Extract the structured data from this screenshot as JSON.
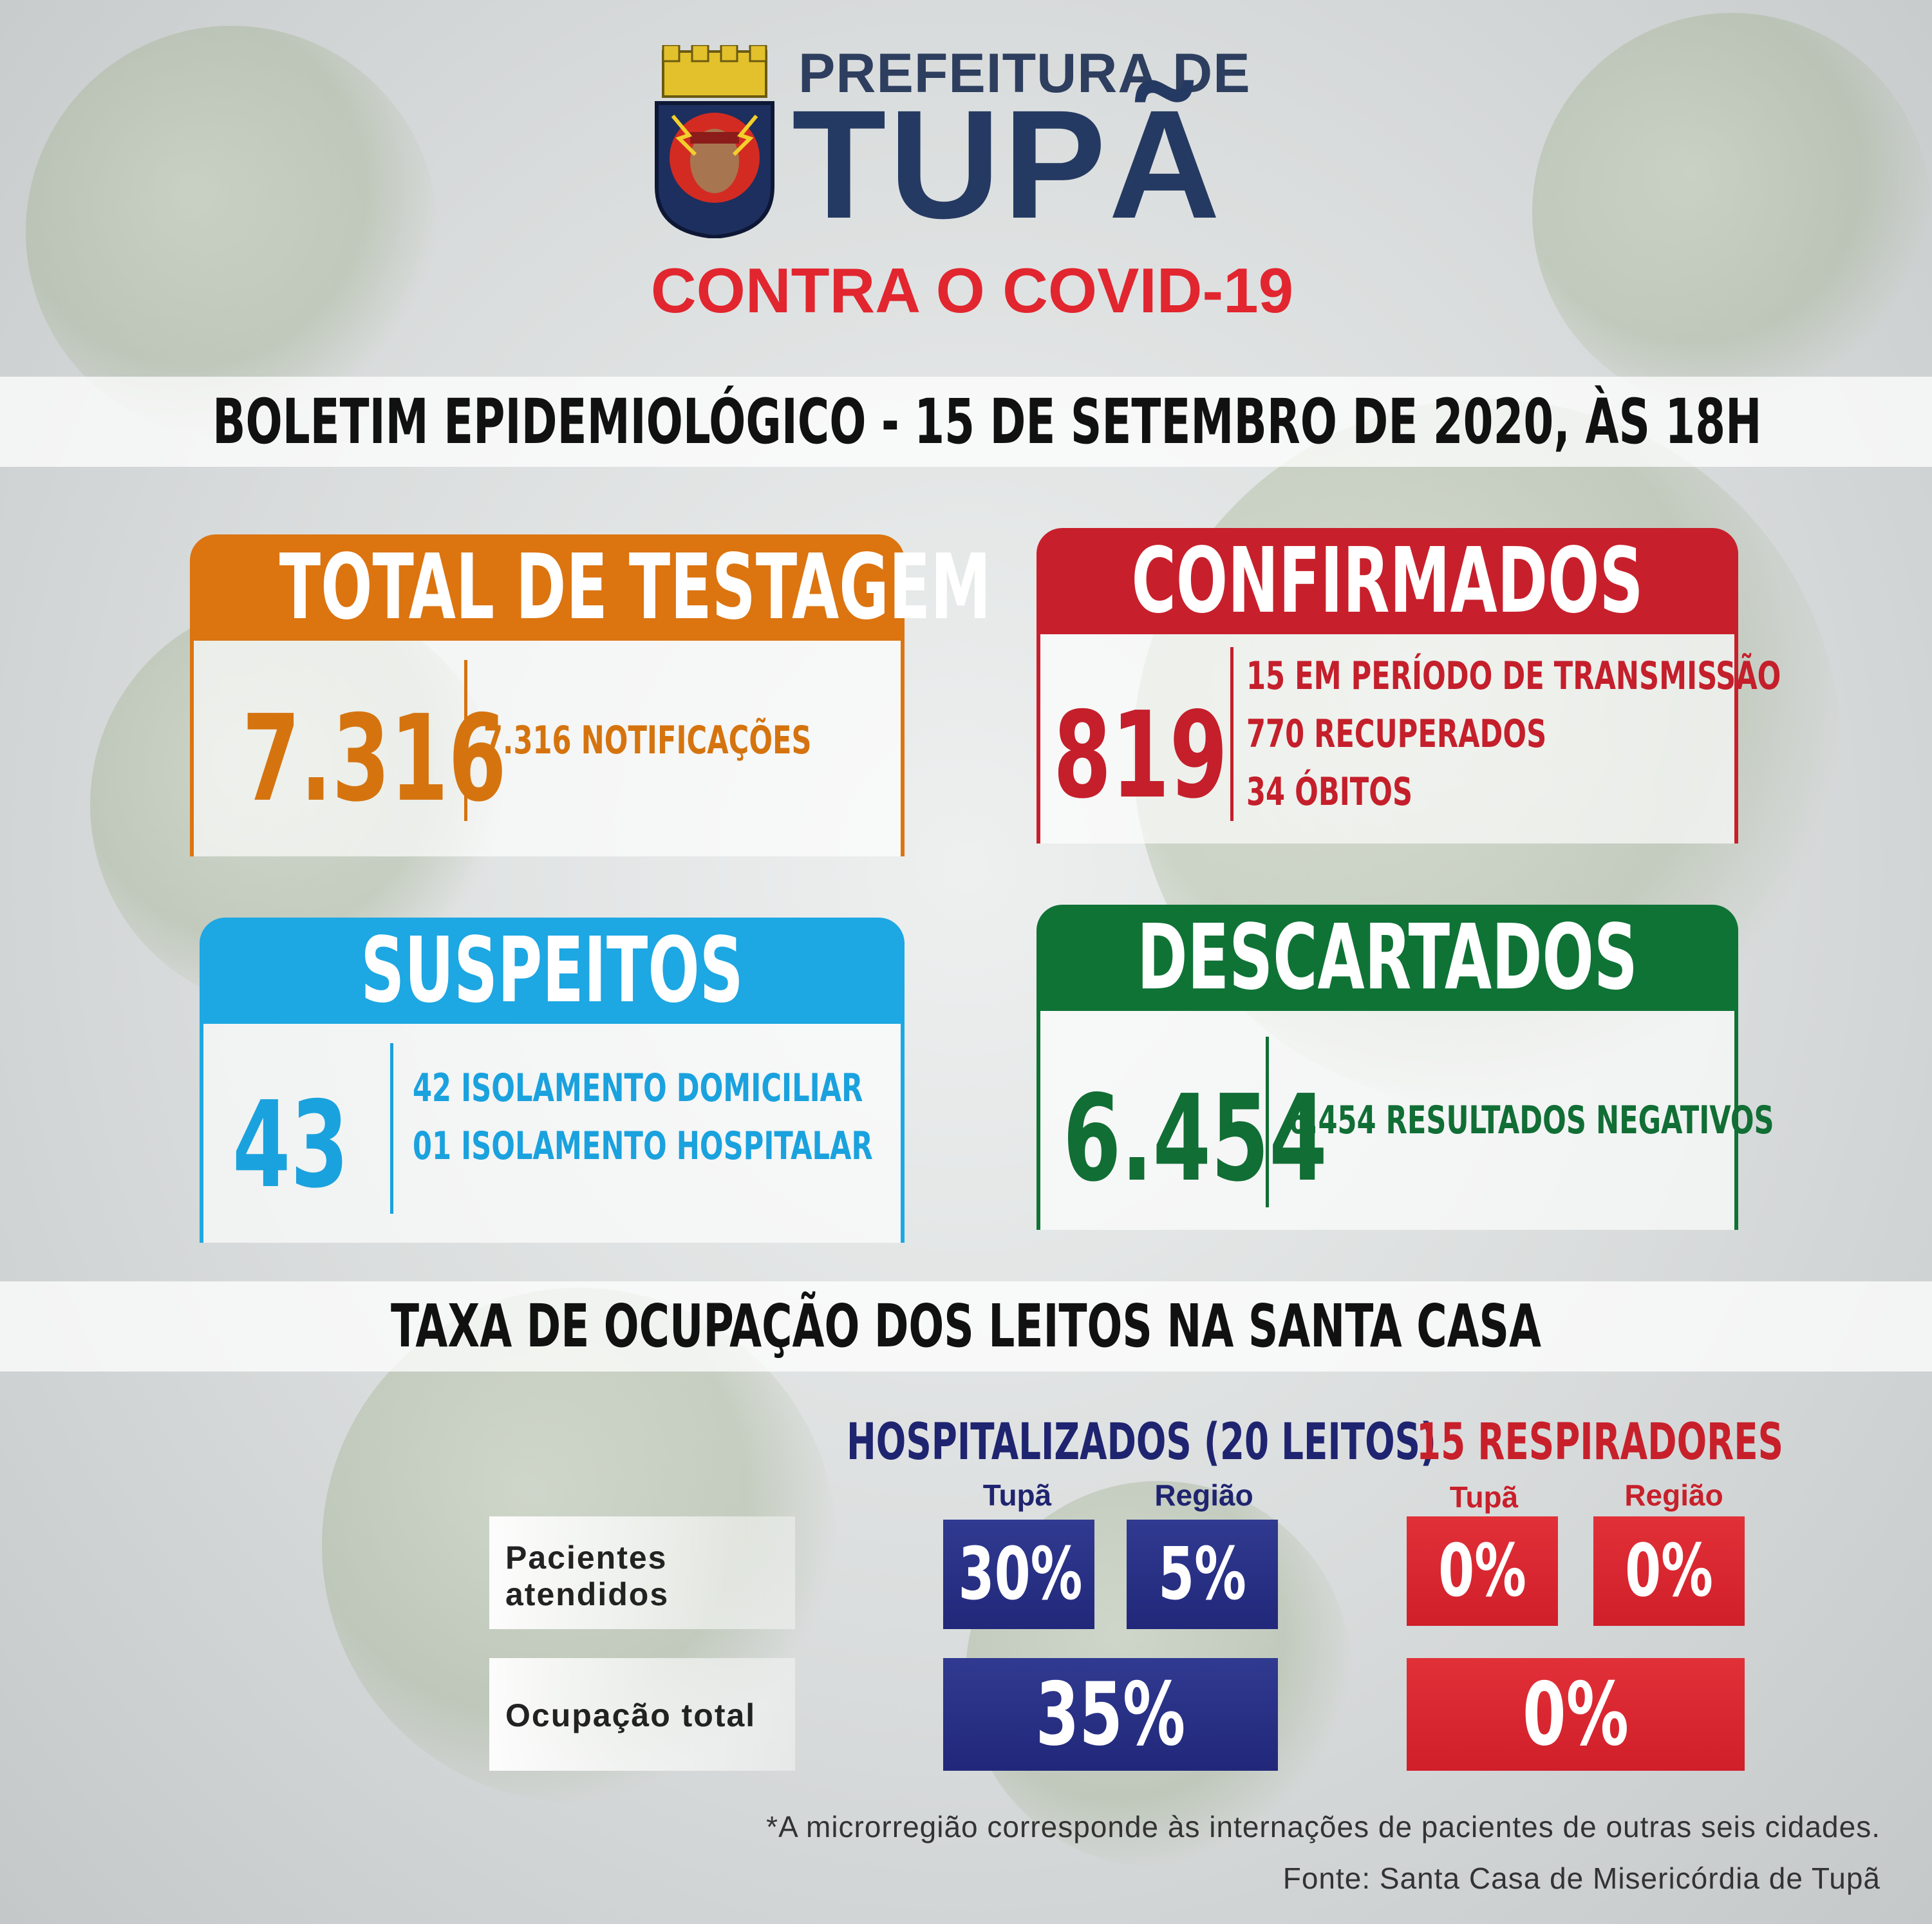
{
  "header": {
    "prefeitura_label": "PREFEITURA DE",
    "city": "TUPÃ",
    "slogan": "CONTRA O COVID-19"
  },
  "bulletin_title": "BOLETIM EPIDEMIOLÓGICO - 15 DE SETEMBRO DE 2020, ÀS 18H",
  "cards": {
    "testagem": {
      "title": "TOTAL DE TESTAGEM",
      "total": "7.316",
      "details": [
        "7.316 NOTIFICAÇÕES"
      ],
      "color": "#dc7410"
    },
    "confirmados": {
      "title": "CONFIRMADOS",
      "total": "819",
      "details": [
        "15 EM PERÍODO DE TRANSMISSÃO",
        "770 RECUPERADOS",
        "34 ÓBITOS"
      ],
      "color": "#c7202c"
    },
    "suspeitos": {
      "title": "SUSPEITOS",
      "total": "43",
      "details": [
        "42 ISOLAMENTO DOMICILIAR",
        "01 ISOLAMENTO HOSPITALAR"
      ],
      "color": "#1da7e3"
    },
    "descartados": {
      "title": "DESCARTADOS",
      "total": "6.454",
      "details": [
        "6.454 RESULTADOS NEGATIVOS"
      ],
      "color": "#0f7336"
    }
  },
  "occupancy": {
    "title": "TAXA DE OCUPAÇÃO DOS LEITOS NA SANTA CASA",
    "hospitalizados": {
      "label": "HOSPITALIZADOS (20 LEITOS)",
      "sub_tupa": "Tupã",
      "sub_regiao": "Região",
      "tupa": "30%",
      "regiao": "5%",
      "total": "35%",
      "color": "#21287a"
    },
    "respiradores": {
      "label": "15 RESPIRADORES",
      "sub_tupa": "Tupã",
      "sub_regiao": "Região",
      "tupa": "0%",
      "regiao": "0%",
      "total": "0%",
      "color": "#d01f2a"
    },
    "rows": {
      "pacientes_line1": "Pacientes",
      "pacientes_line2": "atendidos",
      "ocupacao": "Ocupação total"
    }
  },
  "footnote": "*A microrregião corresponde às internações de pacientes de outras seis cidades.",
  "source": "Fonte: Santa Casa de Misericórdia de Tupã",
  "icons": [
    "coat-of-arms-icon",
    "virus-background-icon"
  ]
}
